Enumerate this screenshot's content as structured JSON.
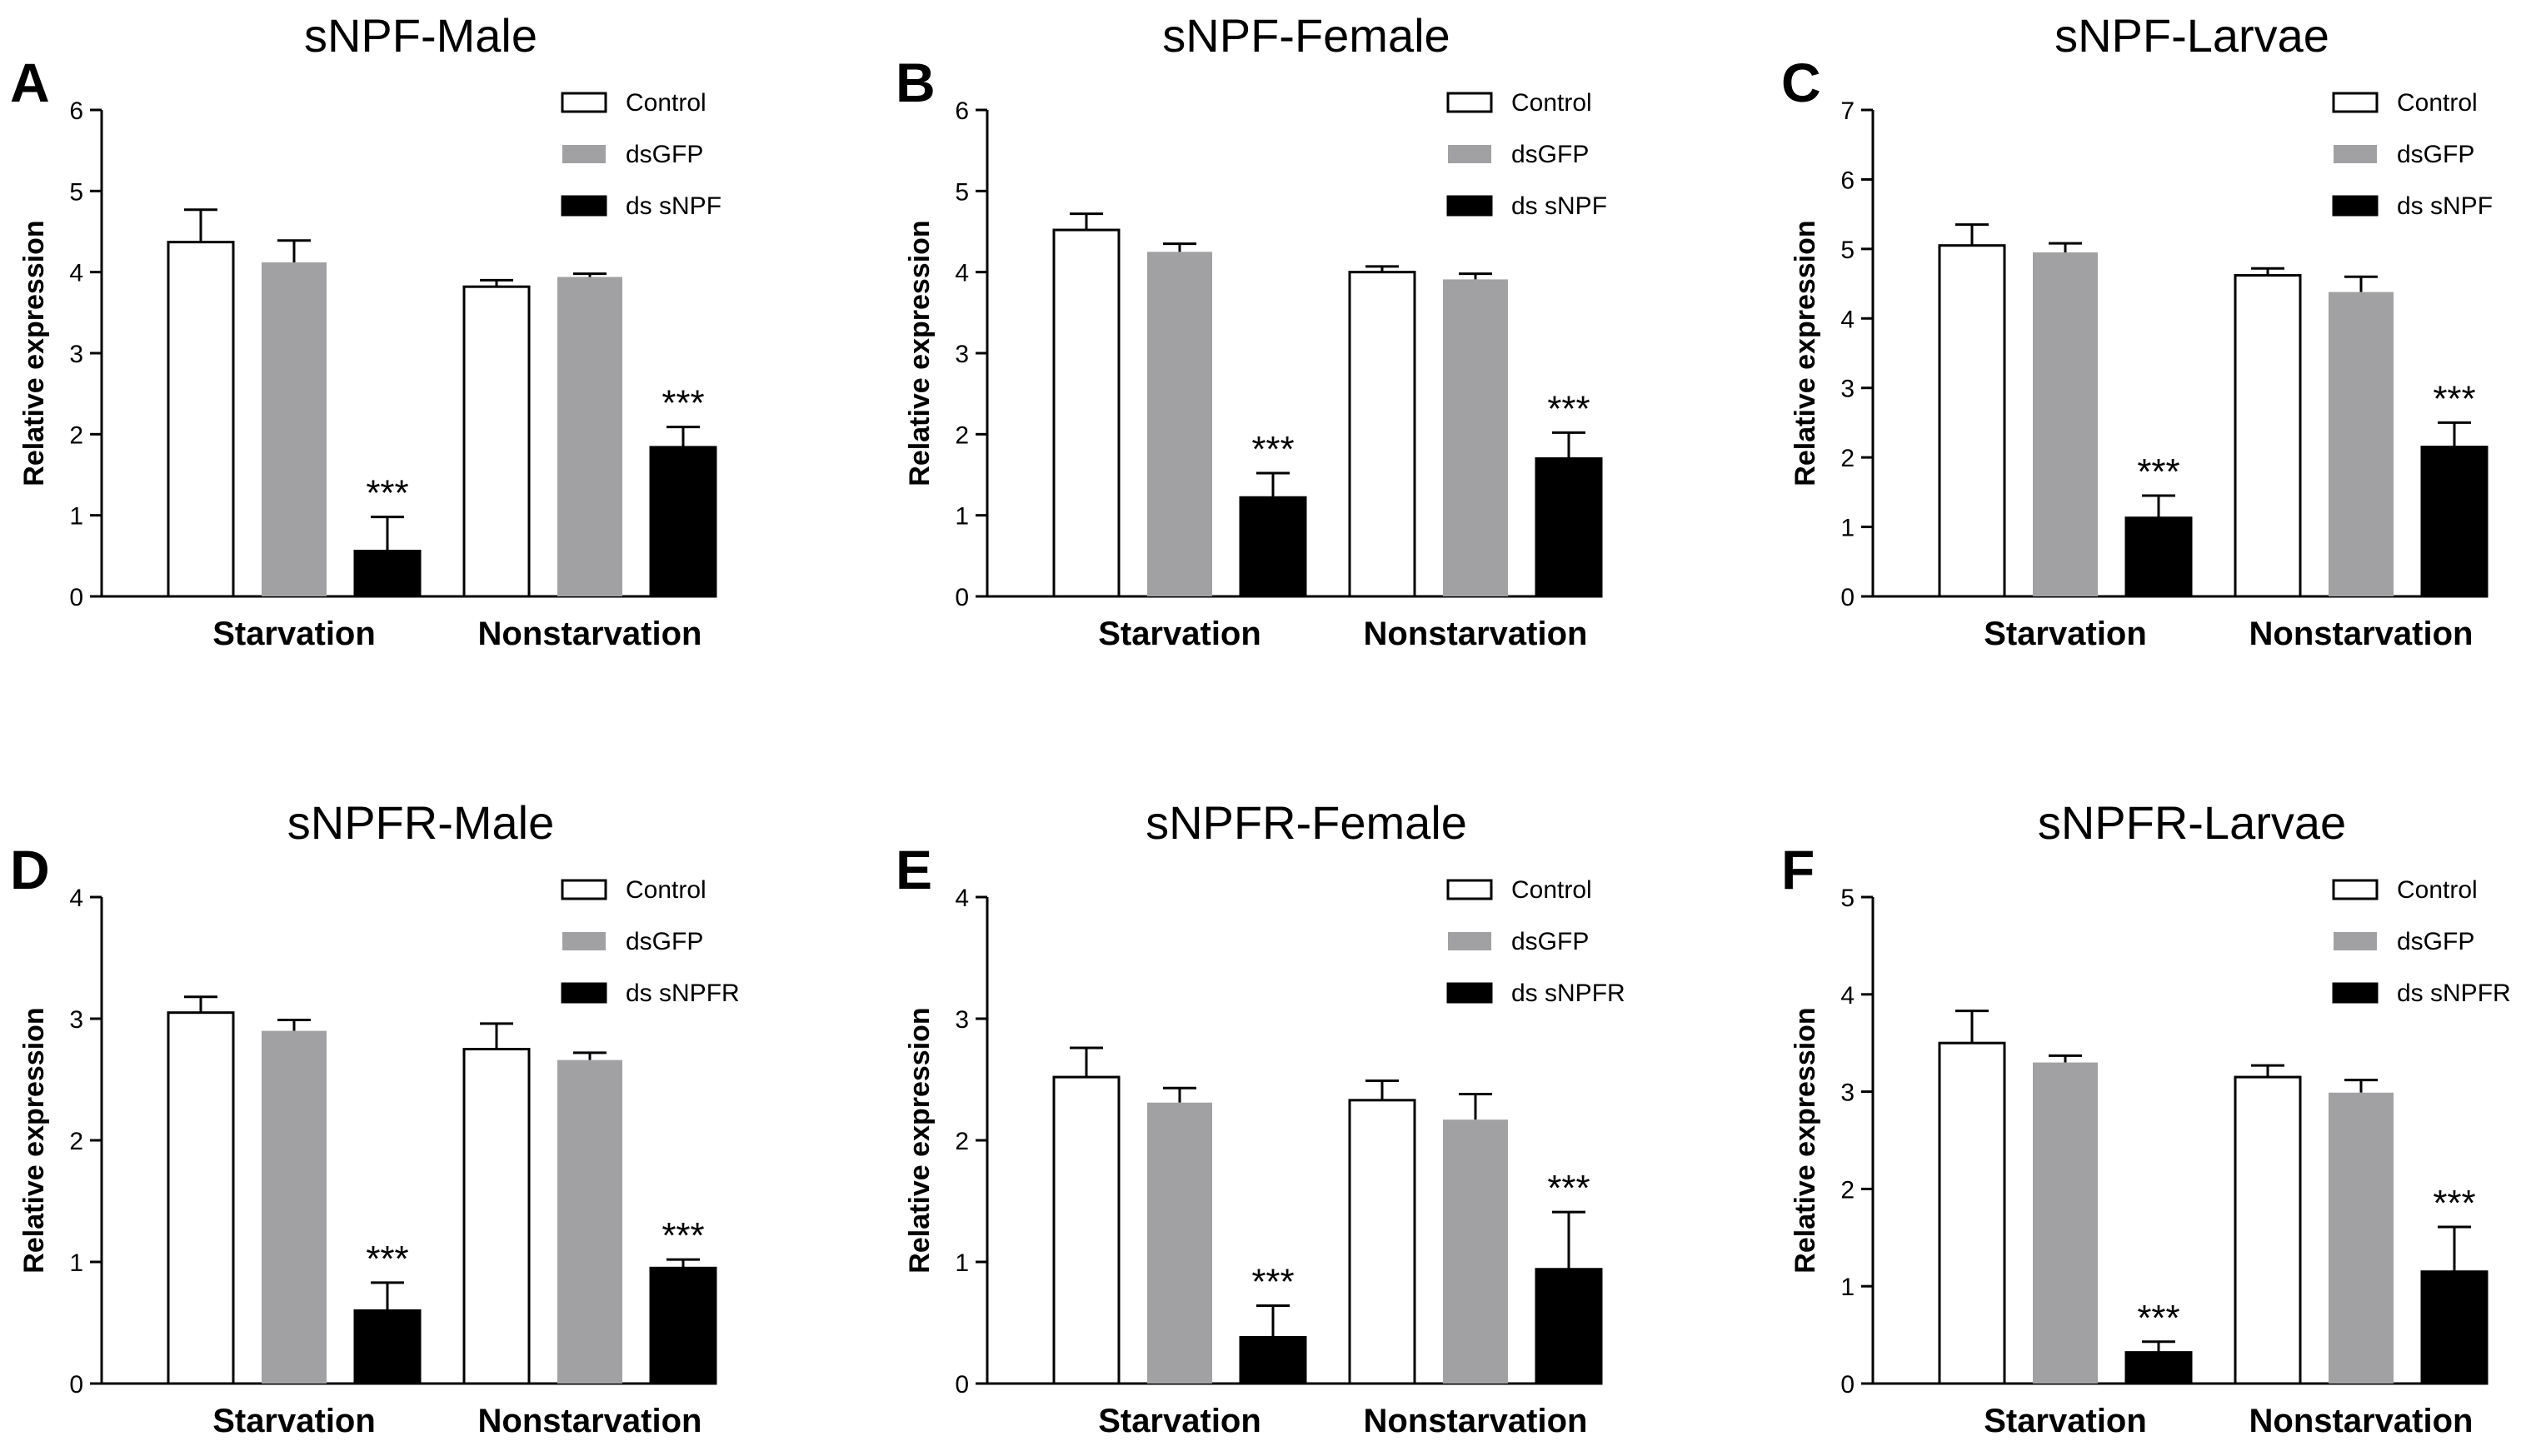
{
  "colors": {
    "control": "#ffffff",
    "dsgfp": "#a1a1a4",
    "knockdown": "#000000",
    "axis": "#000000"
  },
  "chart_data": [
    {
      "panel": "A",
      "title": "sNPF-Male",
      "type": "bar",
      "ylabel": "Relative expression",
      "ylim": [
        0,
        6
      ],
      "yticks": [
        0,
        1,
        2,
        3,
        4,
        5,
        6
      ],
      "categories": [
        "Starvation",
        "Nonstarvation"
      ],
      "series": [
        {
          "name": "Control",
          "values": [
            4.37,
            3.82
          ],
          "errors": [
            0.4,
            0.08
          ]
        },
        {
          "name": "dsGFP",
          "values": [
            4.12,
            3.94
          ],
          "errors": [
            0.27,
            0.04
          ]
        },
        {
          "name": "ds sNPF",
          "values": [
            0.56,
            1.84
          ],
          "errors": [
            0.42,
            0.25
          ]
        }
      ],
      "annotations": [
        {
          "series": 2,
          "category": 0,
          "text": "***"
        },
        {
          "series": 2,
          "category": 1,
          "text": "***"
        }
      ],
      "legend": "top-right"
    },
    {
      "panel": "B",
      "title": "sNPF-Female",
      "type": "bar",
      "ylabel": "Relative expression",
      "ylim": [
        0,
        6
      ],
      "yticks": [
        0,
        1,
        2,
        3,
        4,
        5,
        6
      ],
      "categories": [
        "Starvation",
        "Nonstarvation"
      ],
      "series": [
        {
          "name": "Control",
          "values": [
            4.52,
            4.0
          ],
          "errors": [
            0.2,
            0.07
          ]
        },
        {
          "name": "dsGFP",
          "values": [
            4.25,
            3.91
          ],
          "errors": [
            0.1,
            0.07
          ]
        },
        {
          "name": "ds sNPF",
          "values": [
            1.22,
            1.7
          ],
          "errors": [
            0.3,
            0.32
          ]
        }
      ],
      "annotations": [
        {
          "series": 2,
          "category": 0,
          "text": "***"
        },
        {
          "series": 2,
          "category": 1,
          "text": "***"
        }
      ],
      "legend": "top-right"
    },
    {
      "panel": "C",
      "title": "sNPF-Larvae",
      "type": "bar",
      "ylabel": "Relative expression",
      "ylim": [
        0,
        7
      ],
      "yticks": [
        0,
        1,
        2,
        3,
        4,
        5,
        6,
        7
      ],
      "categories": [
        "Starvation",
        "Nonstarvation"
      ],
      "series": [
        {
          "name": "Control",
          "values": [
            5.05,
            4.62
          ],
          "errors": [
            0.3,
            0.1
          ]
        },
        {
          "name": "dsGFP",
          "values": [
            4.95,
            4.38
          ],
          "errors": [
            0.13,
            0.22
          ]
        },
        {
          "name": "ds sNPF",
          "values": [
            1.13,
            2.15
          ],
          "errors": [
            0.32,
            0.35
          ]
        }
      ],
      "annotations": [
        {
          "series": 2,
          "category": 0,
          "text": "***"
        },
        {
          "series": 2,
          "category": 1,
          "text": "***"
        }
      ],
      "legend": "top-right"
    },
    {
      "panel": "D",
      "title": "sNPFR-Male",
      "type": "bar",
      "ylabel": "Relative expression",
      "ylim": [
        0,
        4
      ],
      "yticks": [
        0,
        1,
        2,
        3,
        4
      ],
      "categories": [
        "Starvation",
        "Nonstarvation"
      ],
      "series": [
        {
          "name": "Control",
          "values": [
            3.05,
            2.75
          ],
          "errors": [
            0.13,
            0.21
          ]
        },
        {
          "name": "dsGFP",
          "values": [
            2.9,
            2.66
          ],
          "errors": [
            0.09,
            0.06
          ]
        },
        {
          "name": "ds sNPFR",
          "values": [
            0.6,
            0.95
          ],
          "errors": [
            0.23,
            0.07
          ]
        }
      ],
      "annotations": [
        {
          "series": 2,
          "category": 0,
          "text": "***"
        },
        {
          "series": 2,
          "category": 1,
          "text": "***"
        }
      ],
      "legend": "top-right"
    },
    {
      "panel": "E",
      "title": "sNPFR-Female",
      "type": "bar",
      "ylabel": "Relative expression",
      "ylim": [
        0,
        4
      ],
      "yticks": [
        0,
        1,
        2,
        3,
        4
      ],
      "categories": [
        "Starvation",
        "Nonstarvation"
      ],
      "series": [
        {
          "name": "Control",
          "values": [
            2.52,
            2.33
          ],
          "errors": [
            0.24,
            0.16
          ]
        },
        {
          "name": "dsGFP",
          "values": [
            2.31,
            2.17
          ],
          "errors": [
            0.12,
            0.21
          ]
        },
        {
          "name": "ds sNPFR",
          "values": [
            0.38,
            0.94
          ],
          "errors": [
            0.26,
            0.47
          ]
        }
      ],
      "annotations": [
        {
          "series": 2,
          "category": 0,
          "text": "***"
        },
        {
          "series": 2,
          "category": 1,
          "text": "***"
        }
      ],
      "legend": "top-right"
    },
    {
      "panel": "F",
      "title": "sNPFR-Larvae",
      "type": "bar",
      "ylabel": "Relative expression",
      "ylim": [
        0,
        5
      ],
      "yticks": [
        0,
        1,
        2,
        3,
        4,
        5
      ],
      "categories": [
        "Starvation",
        "Nonstarvation"
      ],
      "series": [
        {
          "name": "Control",
          "values": [
            3.5,
            3.15
          ],
          "errors": [
            0.33,
            0.12
          ]
        },
        {
          "name": "dsGFP",
          "values": [
            3.3,
            2.99
          ],
          "errors": [
            0.07,
            0.13
          ]
        },
        {
          "name": "ds sNPFR",
          "values": [
            0.32,
            1.15
          ],
          "errors": [
            0.11,
            0.46
          ]
        }
      ],
      "annotations": [
        {
          "series": 2,
          "category": 0,
          "text": "***"
        },
        {
          "series": 2,
          "category": 1,
          "text": "***"
        }
      ],
      "legend": "top-right"
    }
  ]
}
